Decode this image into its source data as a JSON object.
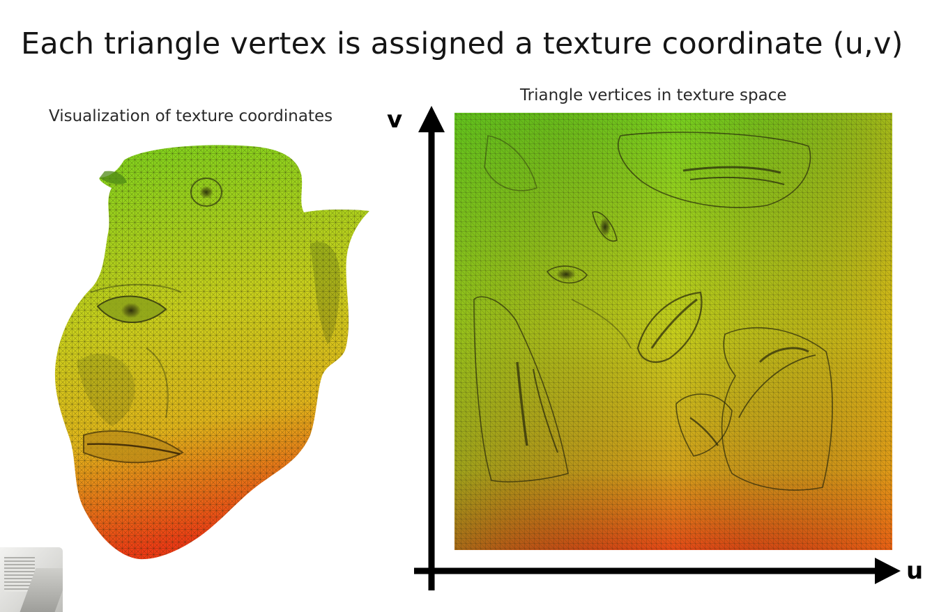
{
  "slide": {
    "title": "Each triangle vertex is assigned a texture coordinate (u,v)"
  },
  "left_panel": {
    "caption": "Visualization of texture coordinates"
  },
  "right_panel": {
    "caption": "Triangle vertices in texture space",
    "v_axis_label": "v",
    "u_axis_label": "u"
  },
  "colors": {
    "top_green": "#6fcf1f",
    "mid_yellow": "#d6d21a",
    "bottom_red": "#e8361a",
    "axis": "#000000"
  }
}
